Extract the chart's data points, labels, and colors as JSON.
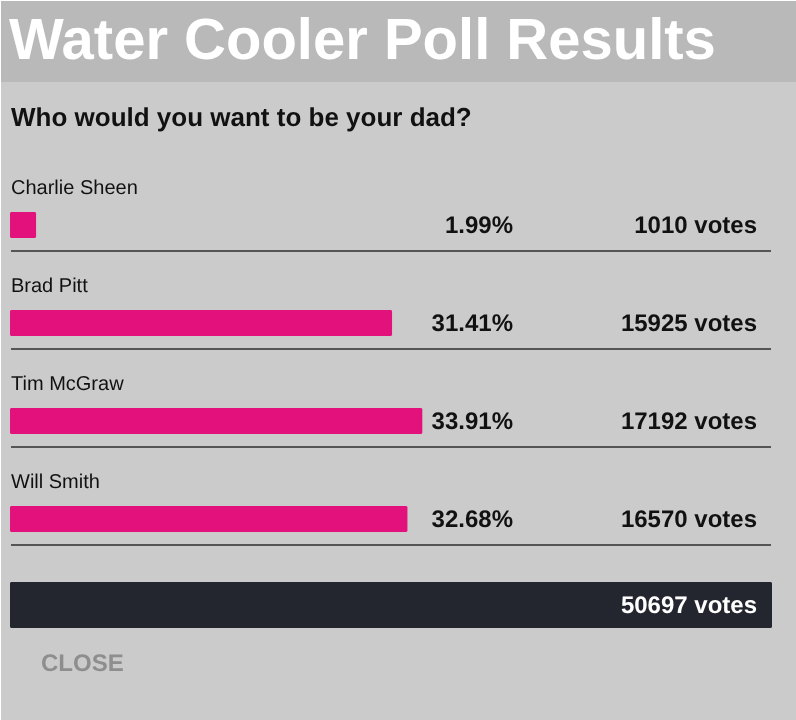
{
  "chart_data": {
    "type": "bar",
    "orientation": "horizontal",
    "title": "Water Cooler Poll Results",
    "subtitle": "Who would you want to be your dad?",
    "categories": [
      "Charlie Sheen",
      "Brad Pitt",
      "Tim McGraw",
      "Will Smith"
    ],
    "values": [
      1.99,
      31.41,
      33.91,
      32.68
    ],
    "color": "#e2117b",
    "value_labels": [
      "1.99%",
      "31.41%",
      "33.91%",
      "32.68%"
    ],
    "annotations": [
      "1010 votes",
      "15925 votes",
      "17192 votes",
      "16570 votes",
      "50697 votes",
      "CLOSE"
    ]
  }
}
